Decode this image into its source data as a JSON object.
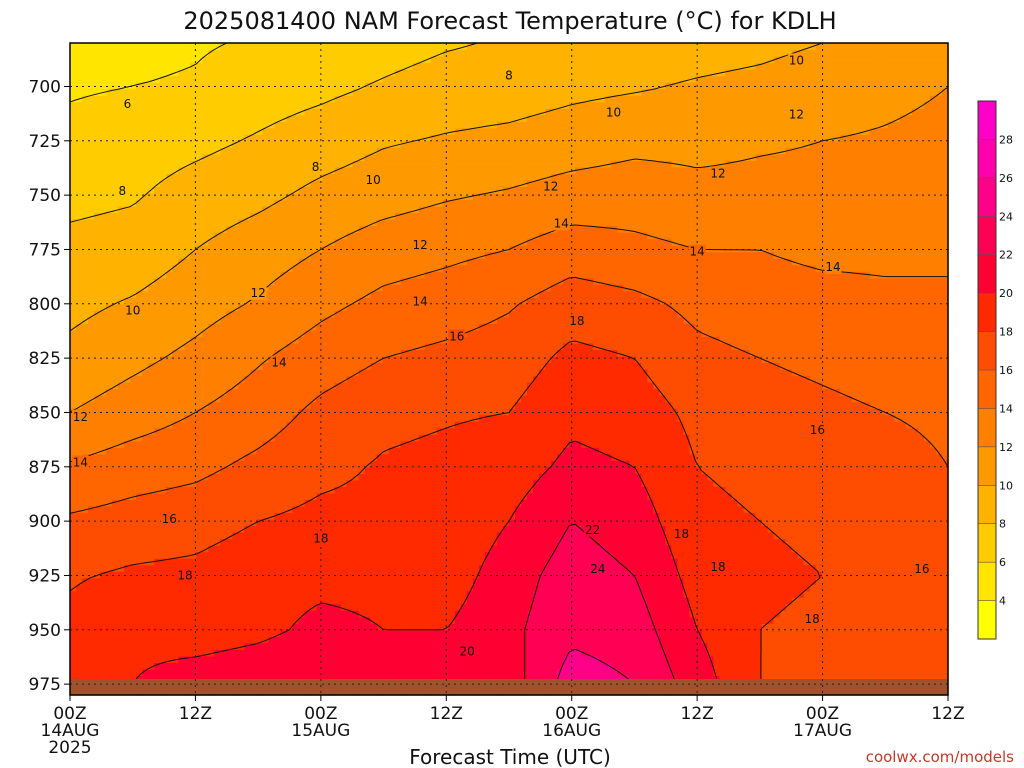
{
  "chart_data": {
    "type": "heatmap",
    "title": "2025081400 NAM Forecast Temperature (°C) for KDLH",
    "xlabel": "Forecast Time (UTC)",
    "ylabel": "",
    "x_hours_range": [
      0,
      84
    ],
    "y_pressure_range": [
      980,
      680
    ],
    "y_ticks": [
      700,
      725,
      750,
      775,
      800,
      825,
      850,
      875,
      900,
      925,
      950,
      975
    ],
    "x_ticks": [
      {
        "hour": 0,
        "label": "00Z",
        "date": "14AUG",
        "year": "2025"
      },
      {
        "hour": 12,
        "label": "12Z",
        "date": "",
        "year": ""
      },
      {
        "hour": 24,
        "label": "00Z",
        "date": "15AUG",
        "year": ""
      },
      {
        "hour": 36,
        "label": "12Z",
        "date": "",
        "year": ""
      },
      {
        "hour": 48,
        "label": "00Z",
        "date": "16AUG",
        "year": ""
      },
      {
        "hour": 60,
        "label": "12Z",
        "date": "",
        "year": ""
      },
      {
        "hour": 72,
        "label": "00Z",
        "date": "17AUG",
        "year": ""
      },
      {
        "hour": 84,
        "label": "12Z",
        "date": "",
        "year": ""
      }
    ],
    "grid": true,
    "colorbar": {
      "levels": [
        2,
        4,
        6,
        8,
        10,
        12,
        14,
        16,
        18,
        20,
        22,
        24,
        26,
        28,
        30
      ],
      "labels": [
        "4",
        "6",
        "8",
        "10",
        "12",
        "14",
        "16",
        "18",
        "20",
        "22",
        "24",
        "26",
        "28"
      ],
      "colors": [
        "#ffff00",
        "#ffe500",
        "#ffcc00",
        "#ffb300",
        "#ff9900",
        "#ff8000",
        "#ff6600",
        "#ff4d00",
        "#ff2a00",
        "#ff0033",
        "#ff0055",
        "#ff0088",
        "#ff00aa",
        "#ff00c8"
      ]
    },
    "hours": [
      0,
      6,
      12,
      18,
      24,
      30,
      36,
      42,
      48,
      54,
      60,
      66,
      72,
      78,
      84
    ],
    "pressure_levels": [
      975,
      950,
      925,
      900,
      875,
      850,
      825,
      800,
      775,
      750,
      725,
      700,
      680
    ],
    "values": [
      [
        19,
        20,
        21,
        21.5,
        22,
        21,
        20,
        21,
        25,
        24,
        21,
        18,
        17,
        17,
        17
      ],
      [
        18.5,
        19.5,
        19,
        19.5,
        20.5,
        20,
        20,
        21.5,
        23.5,
        23,
        20,
        18,
        17.5,
        17.5,
        16.5
      ],
      [
        17.8,
        18.3,
        18.5,
        19.2,
        19.5,
        19.5,
        19,
        21,
        23,
        22,
        19.2,
        18.5,
        18,
        17.5,
        16.2
      ],
      [
        16.3,
        16.8,
        17.2,
        18,
        18.5,
        18.5,
        18.5,
        20,
        22,
        21,
        18.5,
        18,
        17.5,
        17.5,
        16.5
      ],
      [
        14.2,
        15,
        15.5,
        16.5,
        17.5,
        18.2,
        18.5,
        19,
        20.5,
        20,
        18,
        17.5,
        17,
        17,
        16
      ],
      [
        12,
        13,
        14,
        15,
        16.5,
        17.5,
        17.8,
        18,
        19.5,
        19,
        17.5,
        17,
        16.5,
        16,
        15.5
      ],
      [
        10.5,
        11.5,
        12.5,
        13.8,
        15,
        16,
        16.5,
        17,
        18.5,
        18,
        16.5,
        16,
        15.5,
        15,
        14.8
      ],
      [
        9.5,
        10.2,
        11.2,
        12.2,
        13.5,
        14.5,
        15,
        15.8,
        17,
        16.5,
        15.5,
        15,
        14.8,
        14.5,
        14.5
      ],
      [
        8.5,
        8.8,
        10,
        11,
        12,
        13,
        13.5,
        14,
        15,
        14.5,
        14,
        14,
        13.5,
        13.5,
        13.5
      ],
      [
        7.5,
        7.8,
        8.8,
        9.5,
        10.5,
        11.2,
        11.8,
        12.2,
        12.8,
        13,
        12.5,
        12.5,
        12.5,
        13,
        13
      ],
      [
        6.5,
        7,
        7.5,
        8.2,
        9,
        9.8,
        10.2,
        10.5,
        11,
        11.5,
        11.5,
        11.8,
        12,
        12.2,
        12.5
      ],
      [
        5.8,
        6,
        6.2,
        7,
        7.5,
        8.2,
        8.8,
        9,
        9.5,
        9.8,
        10.2,
        10.5,
        11,
        11.5,
        12
      ],
      [
        5.2,
        5.5,
        5.8,
        6.2,
        6.8,
        7.2,
        7.8,
        8.2,
        8.5,
        9,
        9.2,
        9.5,
        10,
        10.5,
        11
      ]
    ],
    "contour_labels": [
      {
        "text": "6",
        "hour": 5.5,
        "p": 708
      },
      {
        "text": "8",
        "hour": 5,
        "p": 748
      },
      {
        "text": "8",
        "hour": 23.5,
        "p": 737
      },
      {
        "text": "8",
        "hour": 42,
        "p": 695
      },
      {
        "text": "10",
        "hour": 6,
        "p": 803
      },
      {
        "text": "10",
        "hour": 29,
        "p": 743
      },
      {
        "text": "10",
        "hour": 52,
        "p": 712
      },
      {
        "text": "10",
        "hour": 69.5,
        "p": 688
      },
      {
        "text": "12",
        "hour": 1,
        "p": 852
      },
      {
        "text": "12",
        "hour": 18,
        "p": 795
      },
      {
        "text": "12",
        "hour": 33.5,
        "p": 773
      },
      {
        "text": "12",
        "hour": 46,
        "p": 746
      },
      {
        "text": "12",
        "hour": 62,
        "p": 740
      },
      {
        "text": "12",
        "hour": 69.5,
        "p": 713
      },
      {
        "text": "14",
        "hour": 1,
        "p": 873
      },
      {
        "text": "14",
        "hour": 20,
        "p": 827
      },
      {
        "text": "14",
        "hour": 33.5,
        "p": 799
      },
      {
        "text": "14",
        "hour": 47,
        "p": 763
      },
      {
        "text": "14",
        "hour": 60,
        "p": 776
      },
      {
        "text": "14",
        "hour": 73,
        "p": 783
      },
      {
        "text": "16",
        "hour": 9.5,
        "p": 899
      },
      {
        "text": "16",
        "hour": 37,
        "p": 815
      },
      {
        "text": "16",
        "hour": 71.5,
        "p": 858
      },
      {
        "text": "16",
        "hour": 81.5,
        "p": 922
      },
      {
        "text": "18",
        "hour": 11,
        "p": 925
      },
      {
        "text": "18",
        "hour": 24,
        "p": 908
      },
      {
        "text": "18",
        "hour": 48.5,
        "p": 808
      },
      {
        "text": "18",
        "hour": 58.5,
        "p": 906
      },
      {
        "text": "18",
        "hour": 62,
        "p": 921
      },
      {
        "text": "18",
        "hour": 71,
        "p": 945
      },
      {
        "text": "20",
        "hour": 38,
        "p": 960
      },
      {
        "text": "22",
        "hour": 50,
        "p": 904
      },
      {
        "text": "24",
        "hour": 50.5,
        "p": 922
      }
    ]
  },
  "watermark": "coolwx.com/models"
}
